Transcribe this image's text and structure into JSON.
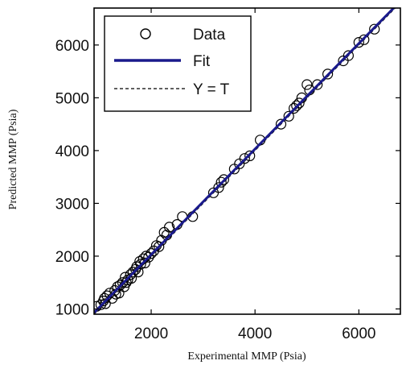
{
  "chart_data": {
    "type": "scatter",
    "xlabel": "Experimental MMP (Psia)",
    "ylabel": "Predicted MMP (Psia)",
    "xlim": [
      900,
      6800
    ],
    "ylim": [
      900,
      6700
    ],
    "xticks": [
      2000,
      4000,
      6000
    ],
    "yticks": [
      1000,
      2000,
      3000,
      4000,
      5000,
      6000
    ],
    "xtick_labels": [
      "2000",
      "4000",
      "6000"
    ],
    "ytick_labels": [
      "1000",
      "2000",
      "3000",
      "4000",
      "5000",
      "6000"
    ],
    "grid": false,
    "legend_position": "top-left",
    "series": [
      {
        "name": "Data",
        "kind": "scatter",
        "marker": "open-circle",
        "color": "#000000",
        "points": [
          [
            950,
            1050
          ],
          [
            1030,
            1080
          ],
          [
            1080,
            1150
          ],
          [
            1100,
            1200
          ],
          [
            1120,
            1100
          ],
          [
            1150,
            1250
          ],
          [
            1200,
            1300
          ],
          [
            1250,
            1200
          ],
          [
            1300,
            1350
          ],
          [
            1320,
            1280
          ],
          [
            1350,
            1420
          ],
          [
            1380,
            1300
          ],
          [
            1400,
            1450
          ],
          [
            1450,
            1500
          ],
          [
            1480,
            1420
          ],
          [
            1500,
            1600
          ],
          [
            1520,
            1500
          ],
          [
            1550,
            1550
          ],
          [
            1600,
            1650
          ],
          [
            1620,
            1580
          ],
          [
            1650,
            1700
          ],
          [
            1700,
            1750
          ],
          [
            1720,
            1800
          ],
          [
            1750,
            1700
          ],
          [
            1780,
            1900
          ],
          [
            1800,
            1850
          ],
          [
            1850,
            1950
          ],
          [
            1880,
            1870
          ],
          [
            1900,
            2000
          ],
          [
            1950,
            1980
          ],
          [
            2000,
            2050
          ],
          [
            2050,
            2100
          ],
          [
            2100,
            2200
          ],
          [
            2150,
            2180
          ],
          [
            2200,
            2300
          ],
          [
            2250,
            2450
          ],
          [
            2300,
            2400
          ],
          [
            2350,
            2550
          ],
          [
            2500,
            2600
          ],
          [
            2600,
            2750
          ],
          [
            2800,
            2750
          ],
          [
            3200,
            3200
          ],
          [
            3300,
            3300
          ],
          [
            3350,
            3400
          ],
          [
            3400,
            3450
          ],
          [
            3600,
            3650
          ],
          [
            3700,
            3750
          ],
          [
            3800,
            3850
          ],
          [
            3900,
            3900
          ],
          [
            4100,
            4200
          ],
          [
            4500,
            4500
          ],
          [
            4650,
            4650
          ],
          [
            4750,
            4800
          ],
          [
            4800,
            4850
          ],
          [
            4850,
            4900
          ],
          [
            4900,
            5000
          ],
          [
            5000,
            5250
          ],
          [
            5050,
            5150
          ],
          [
            5200,
            5250
          ],
          [
            5400,
            5450
          ],
          [
            5700,
            5700
          ],
          [
            5800,
            5800
          ],
          [
            6000,
            6050
          ],
          [
            6100,
            6100
          ],
          [
            6300,
            6300
          ]
        ]
      },
      {
        "name": "Fit",
        "kind": "line",
        "color": "#1a1a8c",
        "x": [
          900,
          6800
        ],
        "y": [
          930,
          6830
        ]
      },
      {
        "name": "Y = T",
        "kind": "dashed-line",
        "color": "#000000",
        "x": [
          900,
          6800
        ],
        "y": [
          900,
          6800
        ]
      }
    ]
  }
}
